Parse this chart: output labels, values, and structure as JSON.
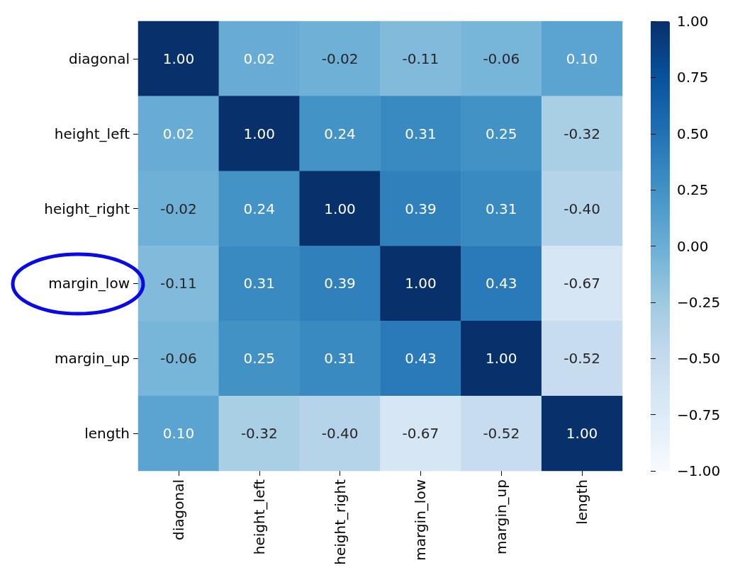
{
  "chart_data": {
    "type": "heatmap",
    "categories": [
      "diagonal",
      "height_left",
      "height_right",
      "margin_low",
      "margin_up",
      "length"
    ],
    "y_categories": [
      "diagonal",
      "height_left",
      "height_right",
      "margin_low",
      "margin_up",
      "length"
    ],
    "cells": [
      [
        1.0,
        0.02,
        -0.02,
        -0.11,
        -0.06,
        0.1
      ],
      [
        0.02,
        1.0,
        0.24,
        0.31,
        0.25,
        -0.32
      ],
      [
        -0.02,
        0.24,
        1.0,
        0.39,
        0.31,
        -0.4
      ],
      [
        -0.11,
        0.31,
        0.39,
        1.0,
        0.43,
        -0.67
      ],
      [
        -0.06,
        0.25,
        0.31,
        0.43,
        1.0,
        -0.52
      ],
      [
        0.1,
        -0.32,
        -0.4,
        -0.67,
        -0.52,
        1.0
      ]
    ],
    "cell_labels": [
      [
        "1.00",
        "0.02",
        "-0.02",
        "-0.11",
        "-0.06",
        "0.10"
      ],
      [
        "0.02",
        "1.00",
        "0.24",
        "0.31",
        "0.25",
        "-0.32"
      ],
      [
        "-0.02",
        "0.24",
        "1.00",
        "0.39",
        "0.31",
        "-0.40"
      ],
      [
        "-0.11",
        "0.31",
        "0.39",
        "1.00",
        "0.43",
        "-0.67"
      ],
      [
        "-0.06",
        "0.25",
        "0.31",
        "0.43",
        "1.00",
        "-0.52"
      ],
      [
        "0.10",
        "-0.32",
        "-0.40",
        "-0.67",
        "-0.52",
        "1.00"
      ]
    ],
    "clim": [
      -1,
      1
    ],
    "cticks": [
      {
        "value": -1,
        "label": "−1.00"
      },
      {
        "value": -0.75,
        "label": "−0.75"
      },
      {
        "value": -0.5,
        "label": "−0.50"
      },
      {
        "value": -0.25,
        "label": "−0.25"
      },
      {
        "value": 0,
        "label": "0.00"
      },
      {
        "value": 0.25,
        "label": "0.25"
      },
      {
        "value": 0.5,
        "label": "0.50"
      },
      {
        "value": 0.75,
        "label": "0.75"
      },
      {
        "value": 1,
        "label": "1.00"
      }
    ]
  }
}
